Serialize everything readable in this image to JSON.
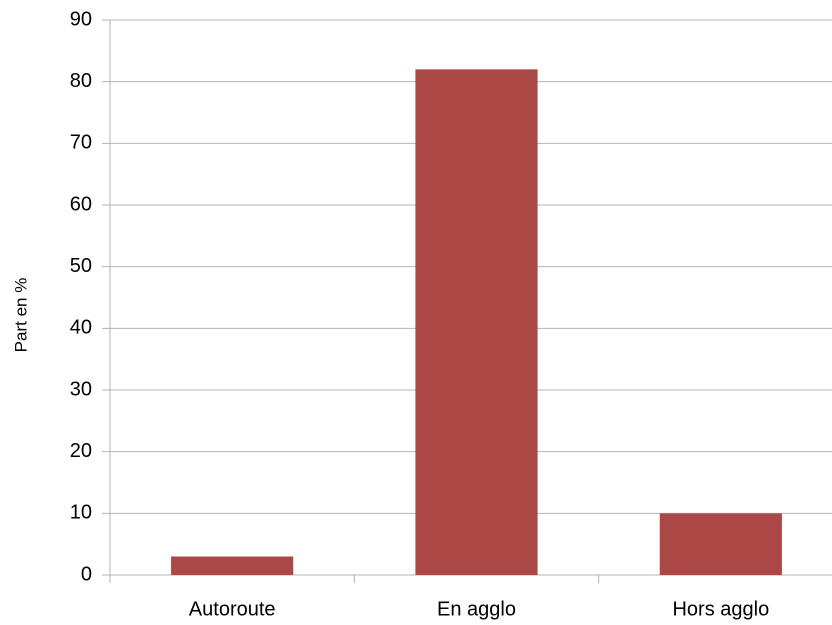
{
  "chart_data": {
    "type": "bar",
    "y_label": "Part en %",
    "categories": [
      "Autoroute",
      "En agglo",
      "Hors agglo"
    ],
    "values": [
      3,
      82,
      10
    ],
    "color": "#ab4846",
    "ylim": [
      0,
      90
    ],
    "yticks": [
      0,
      10,
      20,
      30,
      40,
      50,
      60,
      70,
      80,
      90
    ],
    "grid": true
  }
}
